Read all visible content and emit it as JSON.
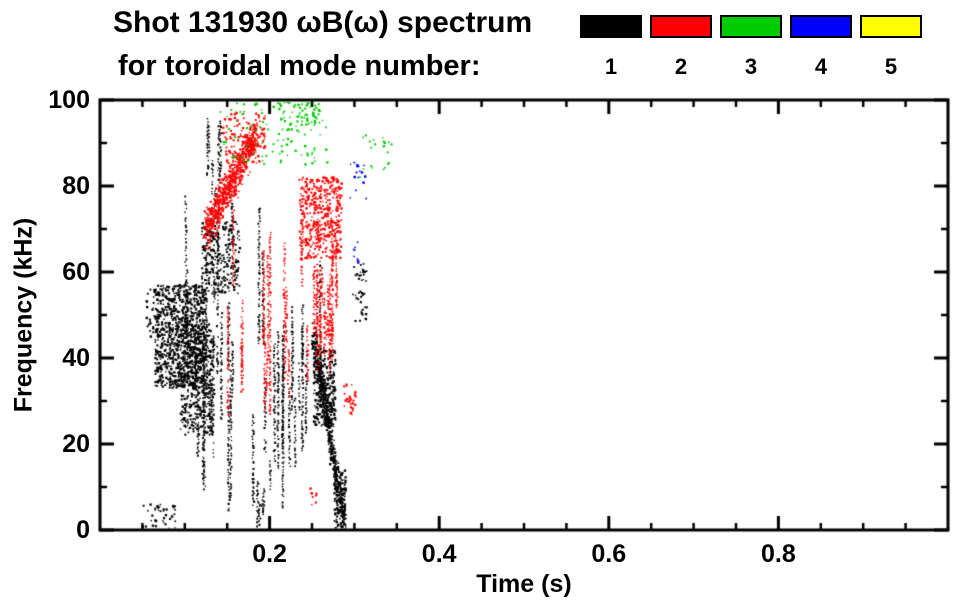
{
  "header": {
    "title": "Shot 131930 ωB(ω) spectrum",
    "subtitle": "for toroidal mode number:"
  },
  "legend": {
    "items": [
      {
        "label": "1",
        "color": "#000000"
      },
      {
        "label": "2",
        "color": "#ff0000"
      },
      {
        "label": "3",
        "color": "#00cc00"
      },
      {
        "label": "4",
        "color": "#0000ff"
      },
      {
        "label": "5",
        "color": "#ffff00"
      }
    ]
  },
  "chart_data": {
    "type": "scatter",
    "title": "Shot 131930 ωB(ω) spectrum for toroidal mode number",
    "xlabel": "Time (s)",
    "ylabel": "Frequency (kHz)",
    "xlim": [
      0,
      1.0
    ],
    "ylim": [
      0,
      100
    ],
    "grid": false,
    "legend_position": "top-right",
    "xticks": {
      "major": [
        0.2,
        0.4,
        0.6,
        0.8
      ],
      "labels": [
        "0.2",
        "0.4",
        "0.6",
        "0.8"
      ],
      "minor_step": 0.05
    },
    "yticks": {
      "major": [
        0,
        20,
        40,
        60,
        80,
        100
      ],
      "labels": [
        "0",
        "20",
        "40",
        "60",
        "80",
        "100"
      ],
      "minor_step": 10
    },
    "series_colors": {
      "1": "#000000",
      "2": "#ff0000",
      "3": "#00cc00",
      "4": "#0000ff",
      "5": "#ffff00"
    },
    "series_names": [
      "1",
      "2",
      "3",
      "4",
      "5"
    ],
    "clusters": [
      {
        "mode": 1,
        "type": "blob",
        "t": [
          0.065,
          0.125
        ],
        "f": [
          33,
          57
        ],
        "n": 900
      },
      {
        "mode": 1,
        "type": "blob",
        "t": [
          0.095,
          0.135
        ],
        "f": [
          22,
          48
        ],
        "n": 450
      },
      {
        "mode": 1,
        "type": "streaks",
        "t": [
          0.1,
          0.27
        ],
        "f": [
          15,
          70
        ],
        "len": [
          8,
          35
        ],
        "n": 34
      },
      {
        "mode": 1,
        "type": "blob",
        "t": [
          0.12,
          0.165
        ],
        "f": [
          55,
          72
        ],
        "n": 260
      },
      {
        "mode": 1,
        "type": "streaks",
        "t": [
          0.125,
          0.16
        ],
        "f": [
          72,
          92
        ],
        "len": [
          4,
          14
        ],
        "n": 8
      },
      {
        "mode": 1,
        "type": "chirp",
        "t": [
          0.252,
          0.288
        ],
        "f": [
          45,
          2
        ],
        "w": 5,
        "n": 420
      },
      {
        "mode": 1,
        "type": "blob",
        "t": [
          0.252,
          0.278
        ],
        "f": [
          24,
          42
        ],
        "n": 300
      },
      {
        "mode": 1,
        "type": "blob",
        "t": [
          0.276,
          0.29
        ],
        "f": [
          0,
          14
        ],
        "n": 130
      },
      {
        "mode": 1,
        "type": "blob",
        "t": [
          0.05,
          0.09
        ],
        "f": [
          0,
          6
        ],
        "n": 40
      },
      {
        "mode": 1,
        "type": "streaks",
        "t": [
          0.15,
          0.22
        ],
        "f": [
          2,
          16
        ],
        "len": [
          4,
          12
        ],
        "n": 6
      },
      {
        "mode": 1,
        "type": "blob",
        "t": [
          0.298,
          0.315
        ],
        "f": [
          48,
          62
        ],
        "n": 40
      },
      {
        "mode": 1,
        "type": "blob",
        "t": [
          0.055,
          0.068
        ],
        "f": [
          44,
          56
        ],
        "n": 30
      },
      {
        "mode": 2,
        "type": "chirp",
        "t": [
          0.125,
          0.185
        ],
        "f": [
          70,
          92
        ],
        "w": 7,
        "n": 650
      },
      {
        "mode": 2,
        "type": "blob",
        "t": [
          0.145,
          0.195
        ],
        "f": [
          85,
          97
        ],
        "n": 130
      },
      {
        "mode": 2,
        "type": "streaks",
        "t": [
          0.15,
          0.28
        ],
        "f": [
          32,
          66
        ],
        "len": [
          6,
          28
        ],
        "n": 26
      },
      {
        "mode": 2,
        "type": "blob",
        "t": [
          0.235,
          0.285
        ],
        "f": [
          63,
          82
        ],
        "n": 420
      },
      {
        "mode": 2,
        "type": "streaks",
        "t": [
          0.255,
          0.285
        ],
        "f": [
          35,
          60
        ],
        "len": [
          6,
          18
        ],
        "n": 8
      },
      {
        "mode": 2,
        "type": "blob",
        "t": [
          0.288,
          0.302
        ],
        "f": [
          27,
          34
        ],
        "n": 28
      },
      {
        "mode": 2,
        "type": "blob",
        "t": [
          0.248,
          0.256
        ],
        "f": [
          5,
          10
        ],
        "n": 8
      },
      {
        "mode": 3,
        "type": "blob",
        "t": [
          0.14,
          0.27
        ],
        "f": [
          85,
          100
        ],
        "n": 110
      },
      {
        "mode": 3,
        "type": "blob",
        "t": [
          0.21,
          0.26
        ],
        "f": [
          94,
          100
        ],
        "n": 55
      },
      {
        "mode": 3,
        "type": "blob",
        "t": [
          0.305,
          0.345
        ],
        "f": [
          82,
          92
        ],
        "n": 22
      },
      {
        "mode": 4,
        "type": "blob",
        "t": [
          0.295,
          0.318
        ],
        "f": [
          77,
          86
        ],
        "n": 16
      },
      {
        "mode": 4,
        "type": "blob",
        "t": [
          0.298,
          0.308
        ],
        "f": [
          62,
          67
        ],
        "n": 8
      }
    ]
  }
}
